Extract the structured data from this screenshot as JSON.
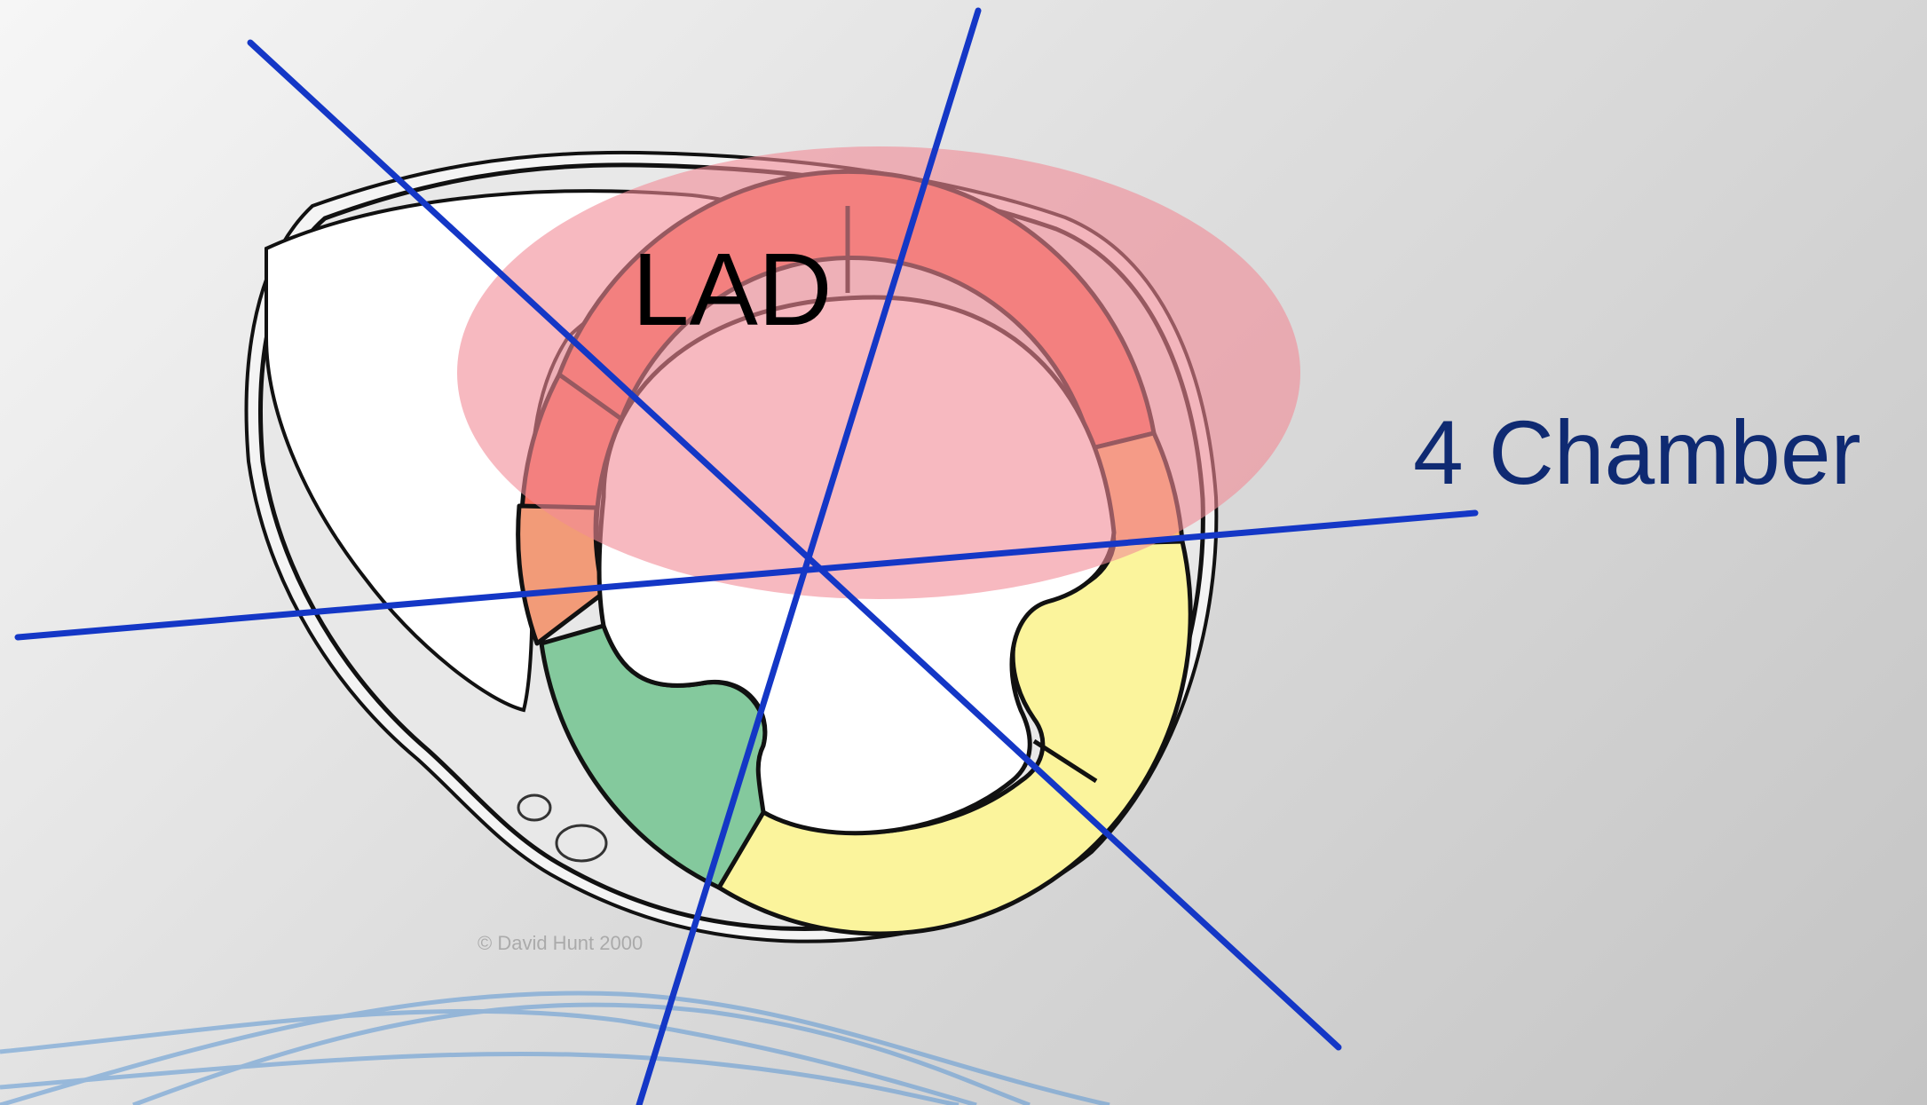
{
  "diagram": {
    "labels": {
      "territory": "LAD",
      "view_line": "4 Chamber",
      "copyright": "© David Hunt 2000"
    },
    "colors": {
      "lad_segments": "#f5705e",
      "lad_territory_overlay": "#f28a96",
      "septal_segment": "#f29b78",
      "lateral_segment": "#f9b572",
      "rca_segments": "#84c99d",
      "lcx_segments": "#fbf49c",
      "view_lines": "#1437c6",
      "view_label": "#0f2a72"
    }
  }
}
